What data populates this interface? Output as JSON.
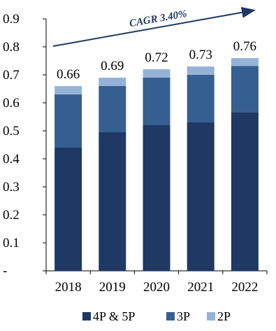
{
  "chart_data": {
    "type": "bar",
    "stacked": true,
    "categories": [
      "2018",
      "2019",
      "2020",
      "2021",
      "2022"
    ],
    "series": [
      {
        "name": "4P & 5P",
        "values": [
          0.44,
          0.495,
          0.52,
          0.53,
          0.567
        ],
        "color": "#1f3864"
      },
      {
        "name": "3P",
        "values": [
          0.19,
          0.165,
          0.17,
          0.17,
          0.165
        ],
        "color": "#365f91"
      },
      {
        "name": "2P",
        "values": [
          0.03,
          0.03,
          0.03,
          0.03,
          0.028
        ],
        "color": "#95b3d7"
      }
    ],
    "totals": [
      "0.66",
      "0.69",
      "0.72",
      "0.73",
      "0.76"
    ],
    "annotation": "CAGR 3.40%",
    "ylim": [
      0,
      0.9
    ],
    "yticks": [
      "-",
      "0.1",
      "0.2",
      "0.3",
      "0.4",
      "0.5",
      "0.6",
      "0.7",
      "0.8",
      "0.9"
    ],
    "grid": false,
    "legend_position": "bottom",
    "title": "",
    "xlabel": "",
    "ylabel": ""
  }
}
